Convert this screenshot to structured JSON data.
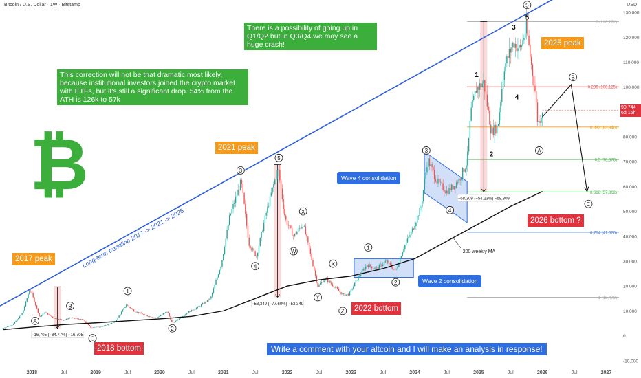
{
  "header": {
    "title": "Bitcoin / U.S. Dollar · 1W · Bitstamp",
    "currency": "USD"
  },
  "price_label": {
    "value": "90,744",
    "sub": "6d 15h"
  },
  "colors": {
    "up": "#26a69a",
    "down": "#ef5350",
    "trendline": "#2e5fd8",
    "ma": "#111111",
    "fib_red": "#e05050",
    "fib_orange": "#f0a020",
    "fib_green": "#4caf50",
    "fib_blue": "#4a7ad8",
    "fib_gray": "#aaaaaa",
    "bitcoin_logo": "#3cae3c"
  },
  "icons": {
    "logo": "bitcoin-logo-icon"
  },
  "notes": {
    "top": "There is a possibility of going up in Q1/Q2 but in Q3/Q4 we may see a huge crash!",
    "correction": "This correction will not be that dramatic most likely, because institutional investors joined the crypto market with ETFs, but it's still a significant drop. 54% from the ATH is 126k to 57k",
    "comment": "Write a comment with your altcoin and I will make an analysis in response!"
  },
  "labels": {
    "peak2017": "2017 peak",
    "peak2021": "2021 peak",
    "peak2025": "2025 peak",
    "bottom2018": "2018 bottom",
    "bottom2022": "2022 bottom",
    "bottom2026": "2026 bottom ?",
    "wave4": "Wave 4 consolidation",
    "wave2": "Wave 2 consolidation",
    "trendline": "Long-term trendline 2017 -> 2021 -> 2025",
    "ma": "200 weekly MA"
  },
  "chart_data": {
    "type": "candlestick",
    "title": "Bitcoin / U.S. Dollar · 1W · Bitstamp",
    "x_ticks": [
      "2018",
      "Jul",
      "2019",
      "Jul",
      "2020",
      "Jul",
      "2021",
      "Jul",
      "2022",
      "Jul",
      "2023",
      "Jul",
      "2024",
      "Jul",
      "2025",
      "Jul",
      "2026",
      "Jul",
      "2027"
    ],
    "x_tick_dates": [
      2018.0,
      2018.5,
      2019.0,
      2019.5,
      2020.0,
      2020.5,
      2021.0,
      2021.5,
      2022.0,
      2022.5,
      2023.0,
      2023.5,
      2024.0,
      2024.5,
      2025.0,
      2025.5,
      2026.0,
      2026.5,
      2027.0
    ],
    "xlim": [
      2017.5,
      2027.2
    ],
    "y_ticks": [
      -10000,
      0,
      10000,
      20000,
      30000,
      40000,
      50000,
      60000,
      70000,
      80000,
      90000,
      100000,
      110000,
      120000,
      130000
    ],
    "y_tick_labels": [
      "-10,000",
      "0",
      "10,000",
      "20,000",
      "30,000",
      "40,000",
      "50,000",
      "60,000",
      "70,000",
      "80,000",
      "90,000",
      "100,000",
      "110,000",
      "120,000",
      "130,000"
    ],
    "ylim": [
      -12000,
      135000
    ],
    "price_path": [
      [
        2017.5,
        2600
      ],
      [
        2017.7,
        4500
      ],
      [
        2017.85,
        9000
      ],
      [
        2017.97,
        19000
      ],
      [
        2018.05,
        13000
      ],
      [
        2018.12,
        7500
      ],
      [
        2018.2,
        9500
      ],
      [
        2018.35,
        7000
      ],
      [
        2018.5,
        6300
      ],
      [
        2018.6,
        7300
      ],
      [
        2018.8,
        6400
      ],
      [
        2018.92,
        3300
      ],
      [
        2019.1,
        3700
      ],
      [
        2019.3,
        5500
      ],
      [
        2019.48,
        12500
      ],
      [
        2019.6,
        10000
      ],
      [
        2019.8,
        8000
      ],
      [
        2019.95,
        7200
      ],
      [
        2020.12,
        9800
      ],
      [
        2020.2,
        5000
      ],
      [
        2020.45,
        9500
      ],
      [
        2020.6,
        11500
      ],
      [
        2020.8,
        15000
      ],
      [
        2020.97,
        29000
      ],
      [
        2021.1,
        48000
      ],
      [
        2021.28,
        62000
      ],
      [
        2021.4,
        37000
      ],
      [
        2021.52,
        32000
      ],
      [
        2021.65,
        47000
      ],
      [
        2021.78,
        60000
      ],
      [
        2021.86,
        67000
      ],
      [
        2021.97,
        47000
      ],
      [
        2022.1,
        40000
      ],
      [
        2022.25,
        45000
      ],
      [
        2022.4,
        29000
      ],
      [
        2022.48,
        20000
      ],
      [
        2022.6,
        23000
      ],
      [
        2022.75,
        19500
      ],
      [
        2022.87,
        16500
      ],
      [
        2022.97,
        16700
      ],
      [
        2023.1,
        23000
      ],
      [
        2023.25,
        28500
      ],
      [
        2023.4,
        27000
      ],
      [
        2023.55,
        30000
      ],
      [
        2023.7,
        26000
      ],
      [
        2023.82,
        35000
      ],
      [
        2023.97,
        43000
      ],
      [
        2024.1,
        52000
      ],
      [
        2024.2,
        71000
      ],
      [
        2024.35,
        62000
      ],
      [
        2024.5,
        58000
      ],
      [
        2024.6,
        60000
      ],
      [
        2024.7,
        63000
      ],
      [
        2024.82,
        70000
      ],
      [
        2024.88,
        90000
      ],
      [
        2024.96,
        99000
      ],
      [
        2025.08,
        102000
      ],
      [
        2025.2,
        82000
      ],
      [
        2025.3,
        84000
      ],
      [
        2025.4,
        108000
      ],
      [
        2025.55,
        118000
      ],
      [
        2025.65,
        115000
      ],
      [
        2025.75,
        124000
      ],
      [
        2025.82,
        110000
      ],
      [
        2025.88,
        100000
      ],
      [
        2025.93,
        85000
      ],
      [
        2025.97,
        88000
      ],
      [
        2026.0,
        90744
      ]
    ],
    "ma_200w": [
      [
        2017.55,
        2500
      ],
      [
        2018.0,
        3500
      ],
      [
        2018.5,
        4500
      ],
      [
        2019.0,
        5200
      ],
      [
        2019.5,
        6000
      ],
      [
        2020.0,
        6800
      ],
      [
        2020.5,
        7800
      ],
      [
        2021.0,
        10000
      ],
      [
        2021.5,
        15000
      ],
      [
        2022.0,
        20000
      ],
      [
        2022.5,
        22500
      ],
      [
        2023.0,
        24000
      ],
      [
        2023.5,
        27000
      ],
      [
        2024.0,
        31000
      ],
      [
        2024.5,
        38000
      ],
      [
        2025.0,
        45000
      ],
      [
        2025.5,
        52000
      ],
      [
        2026.0,
        58000
      ]
    ],
    "trendline": [
      [
        2017.5,
        12000
      ],
      [
        2027.2,
        150000
      ]
    ],
    "projection": [
      [
        2026.0,
        88000
      ],
      [
        2026.45,
        101000
      ],
      [
        2026.7,
        58000
      ]
    ],
    "fib_levels": [
      {
        "ratio": "0",
        "value": "126,272",
        "y": 126272
      },
      {
        "ratio": "0.236",
        "value": "100,125",
        "y": 100125
      },
      {
        "ratio": "0.382",
        "value": "83,946",
        "y": 83946
      },
      {
        "ratio": "0.5",
        "value": "70,876",
        "y": 70876
      },
      {
        "ratio": "0.618",
        "value": "57,802",
        "y": 57802
      },
      {
        "ratio": "0.764",
        "value": "41,626",
        "y": 41626
      },
      {
        "ratio": "1",
        "value": "15,479",
        "y": 15479
      }
    ],
    "measures": [
      {
        "text": "−16,705 (−84.77%) −16,705",
        "x": 2018.4,
        "top": 19700,
        "bottom": 3000
      },
      {
        "text": "−53,349 (−77.60%) −53,349",
        "x": 2021.85,
        "top": 68800,
        "bottom": 15500
      },
      {
        "text": "−68,309 (−54.23%) −68,309",
        "x": 2025.08,
        "top": 126272,
        "bottom": 57900
      }
    ],
    "wave_labels": [
      {
        "t": "A",
        "x": 2018.05,
        "y": 6000,
        "c": true
      },
      {
        "t": "B",
        "x": 2018.6,
        "y": 12000,
        "c": true
      },
      {
        "t": "C",
        "x": 2018.95,
        "y": -1000,
        "c": true
      },
      {
        "t": "1",
        "x": 2019.5,
        "y": 18000,
        "c": true
      },
      {
        "t": "2",
        "x": 2020.2,
        "y": 3000,
        "c": true
      },
      {
        "t": "3",
        "x": 2021.27,
        "y": 66500,
        "c": true
      },
      {
        "t": "4",
        "x": 2021.5,
        "y": 28000,
        "c": true
      },
      {
        "t": "5",
        "x": 2021.87,
        "y": 71500,
        "c": true
      },
      {
        "t": "W",
        "x": 2022.1,
        "y": 34000,
        "c": true
      },
      {
        "t": "X",
        "x": 2022.25,
        "y": 50000,
        "c": true
      },
      {
        "t": "Y",
        "x": 2022.48,
        "y": 15500,
        "c": true
      },
      {
        "t": "X",
        "x": 2022.72,
        "y": 29000,
        "c": true
      },
      {
        "t": "Z",
        "x": 2022.87,
        "y": 10000,
        "c": true
      },
      {
        "t": "1",
        "x": 2023.27,
        "y": 35500,
        "c": true
      },
      {
        "t": "2",
        "x": 2023.7,
        "y": 21500,
        "c": true
      },
      {
        "t": "3",
        "x": 2024.18,
        "y": 74500,
        "c": true
      },
      {
        "t": "4",
        "x": 2024.55,
        "y": 50500,
        "c": true
      },
      {
        "t": "1",
        "x": 2024.97,
        "y": 105000,
        "c": false
      },
      {
        "t": "2",
        "x": 2025.2,
        "y": 73000,
        "c": false
      },
      {
        "t": "3",
        "x": 2025.55,
        "y": 124000,
        "c": false
      },
      {
        "t": "4",
        "x": 2025.6,
        "y": 96000,
        "c": false
      },
      {
        "t": "5",
        "x": 2025.76,
        "y": 128000,
        "c": false
      },
      {
        "t": "5",
        "x": 2025.76,
        "y": 133000,
        "c": true
      },
      {
        "t": "A",
        "x": 2025.95,
        "y": 74500,
        "c": true
      },
      {
        "t": "B",
        "x": 2026.48,
        "y": 104000,
        "c": true
      },
      {
        "t": "C",
        "x": 2026.72,
        "y": 53000,
        "c": true
      }
    ]
  }
}
